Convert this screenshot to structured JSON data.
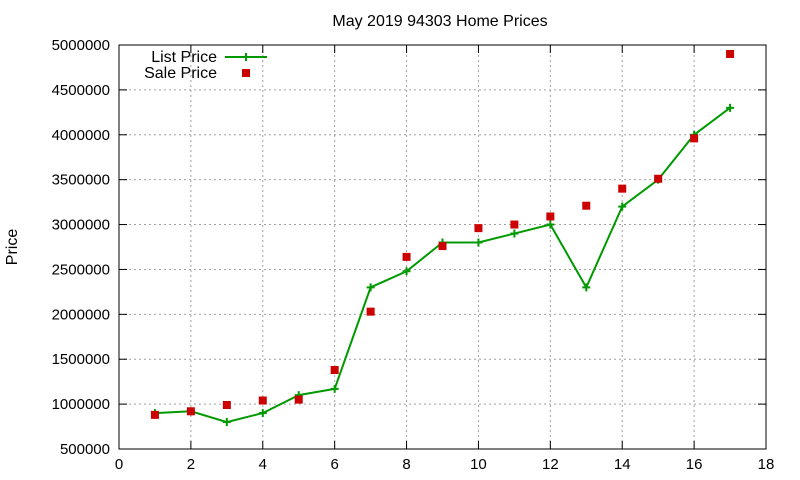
{
  "chart_data": {
    "type": "scatter",
    "title": "May 2019 94303 Home Prices",
    "xlabel": "",
    "ylabel": "Price",
    "xlim": [
      0,
      18
    ],
    "ylim": [
      500000,
      5000000
    ],
    "xticks": [
      0,
      2,
      4,
      6,
      8,
      10,
      12,
      14,
      16,
      18
    ],
    "yticks": [
      500000,
      1000000,
      1500000,
      2000000,
      2500000,
      3000000,
      3500000,
      4000000,
      4500000,
      5000000
    ],
    "grid": true,
    "legend_position": "top-left",
    "series": [
      {
        "name": "List Price",
        "style": "line-plus",
        "color": "#009900",
        "x": [
          1,
          2,
          3,
          4,
          5,
          6,
          7,
          8,
          9,
          10,
          11,
          12,
          13,
          14,
          15,
          16,
          17
        ],
        "y": [
          900000,
          920000,
          800000,
          900000,
          1100000,
          1170000,
          2300000,
          2480000,
          2800000,
          2800000,
          2900000,
          3000000,
          2300000,
          3200000,
          3500000,
          4000000,
          4300000
        ]
      },
      {
        "name": "Sale Price",
        "style": "square",
        "color": "#cc0000",
        "x": [
          1,
          2,
          3,
          4,
          5,
          6,
          7,
          8,
          9,
          10,
          11,
          12,
          13,
          14,
          15,
          16,
          17
        ],
        "y": [
          880000,
          920000,
          990000,
          1040000,
          1050000,
          1380000,
          2030000,
          2640000,
          2760000,
          2960000,
          3000000,
          3090000,
          3210000,
          3400000,
          3510000,
          3960000,
          4900000
        ]
      }
    ]
  }
}
